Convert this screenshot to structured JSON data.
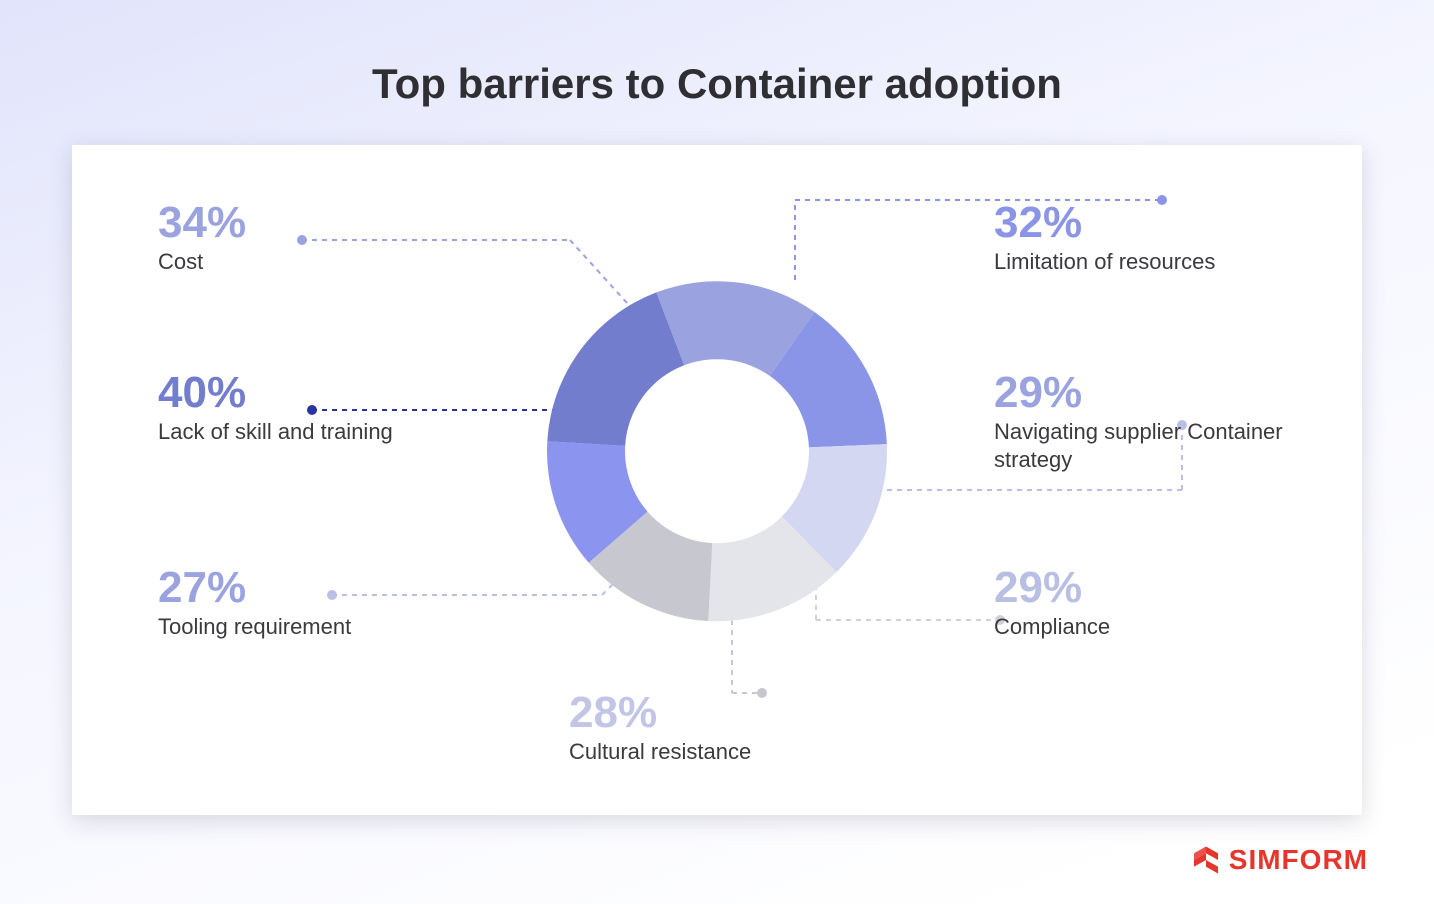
{
  "title": "Top barriers to Container adoption",
  "brand": {
    "name": "SIMFORM",
    "color": "#e6352b"
  },
  "chart": {
    "type": "donut",
    "background": "#ffffff",
    "card_shadow": "rgba(60,60,90,0.18)",
    "gradient_from": "#e1e4fb",
    "gradient_to": "#ffffff",
    "donut_outer_radius": 170,
    "donut_inner_radius": 92,
    "title_fontsize": 42,
    "pct_fontsize": 44,
    "label_fontsize": 22,
    "label_color": "#3a3a3f",
    "segments": [
      {
        "key": "lack_skill",
        "label": "Lack of skill and training",
        "value": 40,
        "color": "#727dcd",
        "pct_color": "#727dcd",
        "leader_color": "#2a34a0"
      },
      {
        "key": "cost",
        "label": "Cost",
        "value": 34,
        "color": "#9aa3df",
        "pct_color": "#9aa3df",
        "leader_color": "#9aa3df"
      },
      {
        "key": "limitation",
        "label": "Limitation of resources",
        "value": 32,
        "color": "#8b95e8",
        "pct_color": "#8b95e8",
        "leader_color": "#8b95e8"
      },
      {
        "key": "navigating",
        "label": "Navigating supplier Container strategy",
        "value": 29,
        "color": "#d3d7f1",
        "pct_color": "#9aa3df",
        "leader_color": "#b9bfe7"
      },
      {
        "key": "compliance",
        "label": "Compliance",
        "value": 29,
        "color": "#e4e5ea",
        "pct_color": "#b9bfe3",
        "leader_color": "#d0d1d7"
      },
      {
        "key": "cultural",
        "label": "Cultural resistance",
        "value": 28,
        "color": "#c7c8cf",
        "pct_color": "#c1c5e6",
        "leader_color": "#c7c8cf"
      },
      {
        "key": "tooling",
        "label": "Tooling requirement",
        "value": 27,
        "color": "#8b95f0",
        "pct_color": "#9aa3df",
        "leader_color": "#b9bfe7"
      }
    ]
  }
}
